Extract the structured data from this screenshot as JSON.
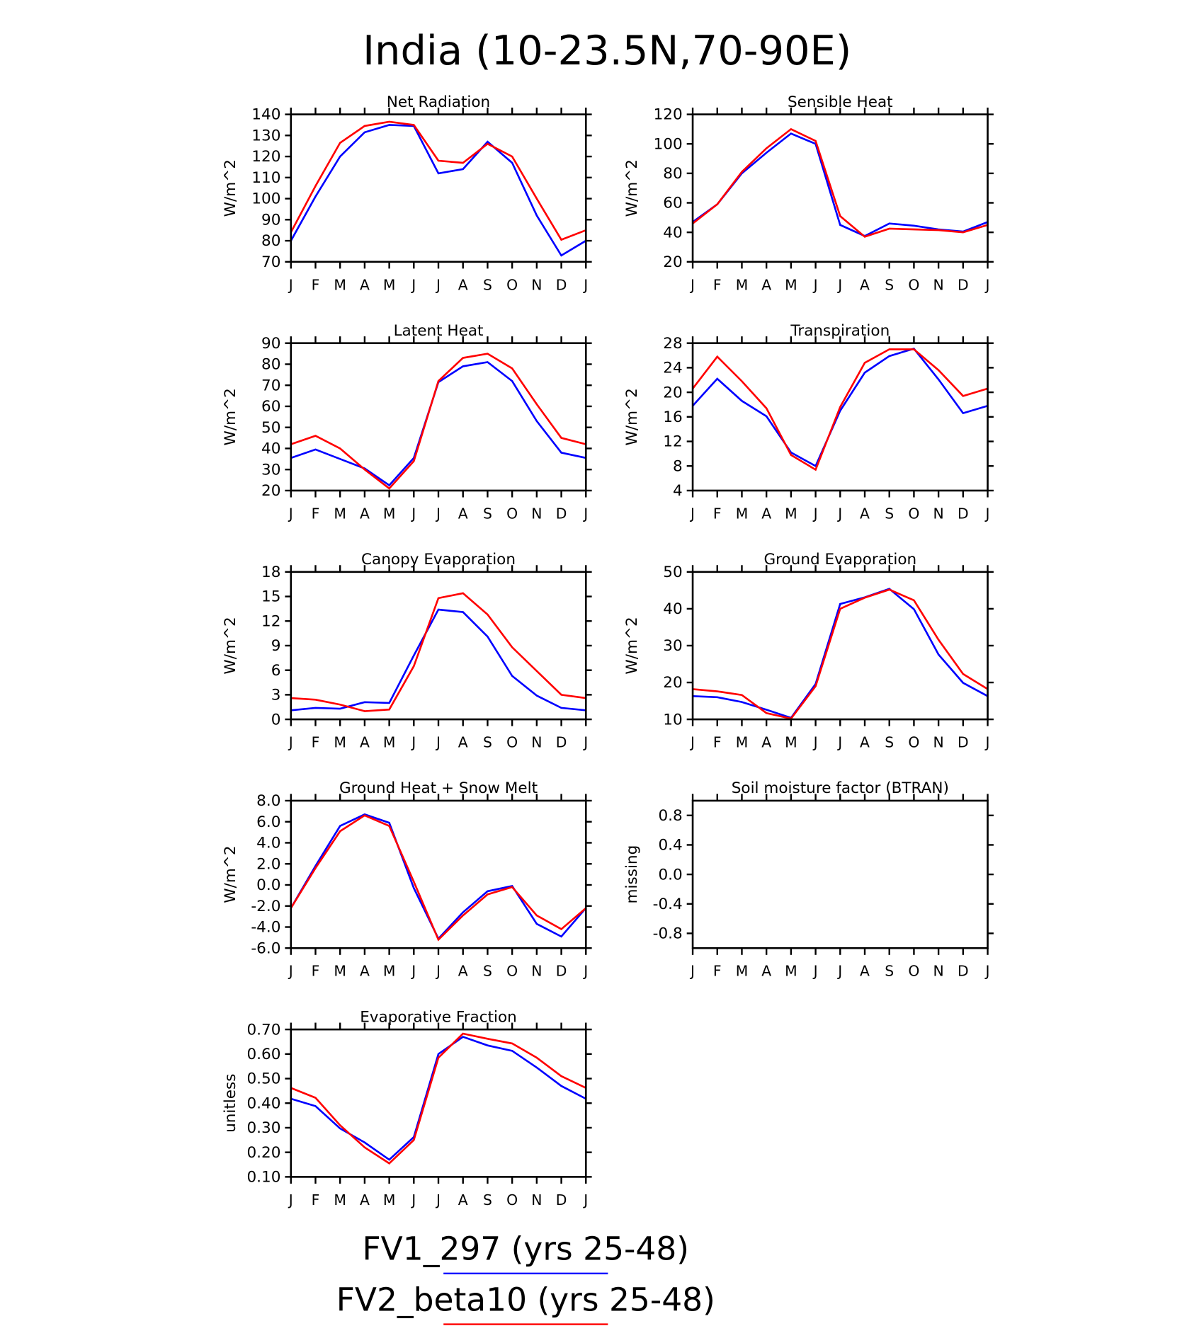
{
  "title": "India (10-23.5N,70-90E)",
  "legend": [
    {
      "name": "FV1_297 (yrs 25-48)",
      "color": "#0000ff"
    },
    {
      "name": "FV2_beta10 (yrs 25-48)",
      "color": "#ff0000"
    }
  ],
  "chart_data": [
    {
      "type": "line",
      "title": "Net Radiation",
      "y_label": "W/m^2",
      "categories": [
        "J",
        "F",
        "M",
        "A",
        "M",
        "J",
        "J",
        "A",
        "S",
        "O",
        "N",
        "D",
        "J"
      ],
      "ylim": [
        70,
        140
      ],
      "yticks": [
        70,
        80,
        90,
        100,
        110,
        120,
        130,
        140
      ],
      "series": [
        {
          "values": [
            80,
            101,
            120,
            131.5,
            135,
            134.5,
            112,
            114,
            127,
            117,
            92,
            73,
            80
          ]
        },
        {
          "values": [
            84,
            106,
            126.5,
            134.5,
            136.5,
            135,
            118,
            117,
            126,
            120,
            100,
            80.5,
            85
          ]
        }
      ]
    },
    {
      "type": "line",
      "title": "Sensible Heat",
      "y_label": "W/m^2",
      "categories": [
        "J",
        "F",
        "M",
        "A",
        "M",
        "J",
        "J",
        "A",
        "S",
        "O",
        "N",
        "D",
        "J"
      ],
      "ylim": [
        20,
        120
      ],
      "yticks": [
        20,
        40,
        60,
        80,
        100,
        120
      ],
      "series": [
        {
          "values": [
            47,
            59,
            80,
            94,
            107,
            100,
            45,
            37.5,
            46,
            44.5,
            42,
            40.5,
            47
          ]
        },
        {
          "values": [
            46,
            59,
            81,
            97,
            110,
            102,
            51,
            37,
            42.5,
            42,
            41.5,
            40,
            45
          ]
        }
      ]
    },
    {
      "type": "line",
      "title": "Latent Heat",
      "y_label": "W/m^2",
      "categories": [
        "J",
        "F",
        "M",
        "A",
        "M",
        "J",
        "J",
        "A",
        "S",
        "O",
        "N",
        "D",
        "J"
      ],
      "ylim": [
        20,
        90
      ],
      "yticks": [
        20,
        30,
        40,
        50,
        60,
        70,
        80,
        90
      ],
      "series": [
        {
          "values": [
            35.5,
            39.5,
            35,
            30.5,
            22.5,
            35.5,
            71.5,
            79,
            81,
            72,
            53,
            38,
            35.5
          ]
        },
        {
          "values": [
            42,
            46,
            40,
            30,
            21,
            34,
            72,
            83,
            85,
            78,
            61,
            45,
            42
          ]
        }
      ]
    },
    {
      "type": "line",
      "title": "Transpiration",
      "y_label": "W/m^2",
      "categories": [
        "J",
        "F",
        "M",
        "A",
        "M",
        "J",
        "J",
        "A",
        "S",
        "O",
        "N",
        "D",
        "J"
      ],
      "ylim": [
        4,
        28
      ],
      "yticks": [
        4,
        8,
        12,
        16,
        20,
        24,
        28
      ],
      "series": [
        {
          "values": [
            17.8,
            22.2,
            18.6,
            16.1,
            10.2,
            8,
            17,
            23.2,
            25.9,
            27.1,
            22.1,
            16.6,
            17.8
          ]
        },
        {
          "values": [
            20.6,
            25.8,
            21.8,
            17.4,
            9.8,
            7.4,
            17.6,
            24.8,
            27,
            27,
            23.6,
            19.4,
            20.6
          ]
        }
      ]
    },
    {
      "type": "line",
      "title": "Canopy Evaporation",
      "y_label": "W/m^2",
      "categories": [
        "J",
        "F",
        "M",
        "A",
        "M",
        "J",
        "J",
        "A",
        "S",
        "O",
        "N",
        "D",
        "J"
      ],
      "ylim": [
        0,
        18
      ],
      "yticks": [
        0,
        3,
        6,
        9,
        12,
        15,
        18
      ],
      "series": [
        {
          "values": [
            1.1,
            1.4,
            1.3,
            2.1,
            2.0,
            7.8,
            13.4,
            13.1,
            10.1,
            5.3,
            2.9,
            1.4,
            1.1
          ]
        },
        {
          "values": [
            2.6,
            2.4,
            1.8,
            1.0,
            1.2,
            6.5,
            14.8,
            15.4,
            12.8,
            8.8,
            5.9,
            3.0,
            2.6
          ]
        }
      ]
    },
    {
      "type": "line",
      "title": "Ground Evaporation",
      "y_label": "W/m^2",
      "categories": [
        "J",
        "F",
        "M",
        "A",
        "M",
        "J",
        "J",
        "A",
        "S",
        "O",
        "N",
        "D",
        "J"
      ],
      "ylim": [
        10,
        50
      ],
      "yticks": [
        10,
        20,
        30,
        40,
        50
      ],
      "series": [
        {
          "values": [
            16.3,
            16,
            14.7,
            12.6,
            10.4,
            19.6,
            41.3,
            43.1,
            45.4,
            39.9,
            27.6,
            19.9,
            16.3
          ]
        },
        {
          "values": [
            18.2,
            17.6,
            16.6,
            11.7,
            10.2,
            19,
            40,
            43,
            45.2,
            42.3,
            31.6,
            22.3,
            18.2
          ]
        }
      ]
    },
    {
      "type": "line",
      "title": "Ground Heat + Snow Melt",
      "y_label": "W/m^2",
      "categories": [
        "J",
        "F",
        "M",
        "A",
        "M",
        "J",
        "J",
        "A",
        "S",
        "O",
        "N",
        "D",
        "J"
      ],
      "ylim": [
        -6,
        8
      ],
      "yticks": [
        {
          "value": -6,
          "label": "-6.0"
        },
        {
          "value": -4,
          "label": "-4.0"
        },
        {
          "value": -2,
          "label": "-2.0"
        },
        {
          "value": 0,
          "label": "0.0"
        },
        {
          "value": 2,
          "label": "2.0"
        },
        {
          "value": 4,
          "label": "4.0"
        },
        {
          "value": 6,
          "label": "6.0"
        },
        {
          "value": 8,
          "label": "8.0"
        }
      ],
      "series": [
        {
          "values": [
            -2.2,
            1.8,
            5.6,
            6.7,
            5.9,
            -0.3,
            -5.1,
            -2.6,
            -0.6,
            -0.1,
            -3.7,
            -4.9,
            -2.2
          ]
        },
        {
          "values": [
            -2.2,
            1.6,
            5.1,
            6.6,
            5.6,
            0.3,
            -5.2,
            -2.9,
            -0.9,
            -0.2,
            -2.9,
            -4.2,
            -2.2
          ]
        }
      ]
    },
    {
      "type": "line",
      "title": "Soil moisture factor (BTRAN)",
      "y_label": "missing",
      "categories": [
        "J",
        "F",
        "M",
        "A",
        "M",
        "J",
        "J",
        "A",
        "S",
        "O",
        "N",
        "D",
        "J"
      ],
      "ylim": [
        -1,
        1
      ],
      "yticks": [
        -0.8,
        -0.4,
        {
          "value": 0,
          "label": "0.0"
        },
        0.4,
        0.8
      ],
      "series": []
    },
    {
      "type": "line",
      "title": "Evaporative Fraction",
      "y_label": "unitless",
      "categories": [
        "J",
        "F",
        "M",
        "A",
        "M",
        "J",
        "J",
        "A",
        "S",
        "O",
        "N",
        "D",
        "J"
      ],
      "ylim": [
        0.1,
        0.7
      ],
      "yticks": [
        {
          "value": 0.1,
          "label": "0.10"
        },
        {
          "value": 0.2,
          "label": "0.20"
        },
        {
          "value": 0.3,
          "label": "0.30"
        },
        {
          "value": 0.4,
          "label": "0.40"
        },
        {
          "value": 0.5,
          "label": "0.50"
        },
        {
          "value": 0.6,
          "label": "0.60"
        },
        {
          "value": 0.7,
          "label": "0.70"
        }
      ],
      "series": [
        {
          "values": [
            0.418,
            0.388,
            0.297,
            0.24,
            0.17,
            0.262,
            0.6,
            0.67,
            0.635,
            0.613,
            0.545,
            0.47,
            0.418
          ]
        },
        {
          "values": [
            0.462,
            0.422,
            0.31,
            0.22,
            0.155,
            0.25,
            0.585,
            0.683,
            0.662,
            0.643,
            0.585,
            0.51,
            0.462
          ]
        }
      ]
    }
  ]
}
